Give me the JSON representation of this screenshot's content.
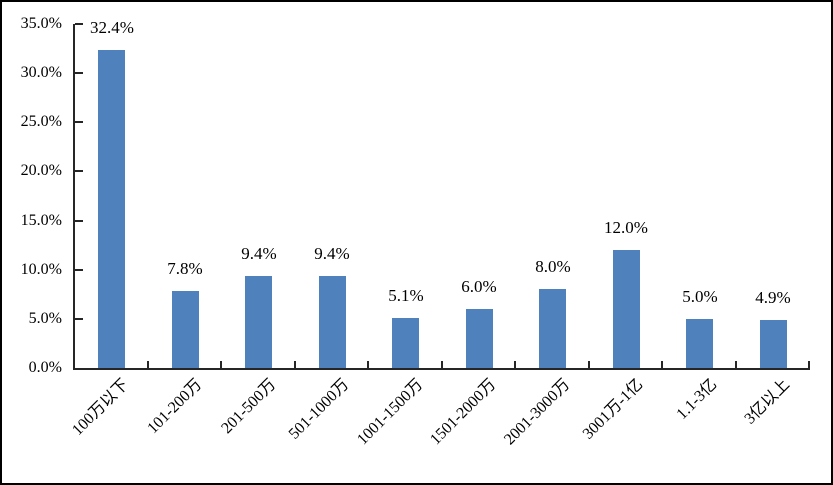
{
  "chart_data": {
    "type": "bar",
    "title": "",
    "xlabel": "",
    "ylabel": "",
    "categories": [
      "100万以下",
      "101-200万",
      "201-500万",
      "501-1000万",
      "1001-1500万",
      "1501-2000万",
      "2001-3000万",
      "3001万-1亿",
      "1.1-3亿",
      "3亿以上"
    ],
    "values": [
      32.4,
      7.8,
      9.4,
      9.4,
      5.1,
      6.0,
      8.0,
      12.0,
      5.0,
      4.9
    ],
    "bar_labels": [
      "32.4%",
      "7.8%",
      "9.4%",
      "9.4%",
      "5.1%",
      "6.0%",
      "8.0%",
      "12.0%",
      "5.0%",
      "4.9%"
    ],
    "ylim": [
      0,
      35
    ],
    "ytick_step": 5,
    "ytick_labels": [
      "0.0%",
      "5.0%",
      "10.0%",
      "15.0%",
      "20.0%",
      "25.0%",
      "30.0%",
      "35.0%"
    ],
    "grid": false,
    "legend": false,
    "tick_style": "inside",
    "colors": {
      "bar": "#4f81bd",
      "axis": "#262626",
      "text": "#000000",
      "frame_border": "#000000",
      "background": "#ffffff"
    }
  }
}
